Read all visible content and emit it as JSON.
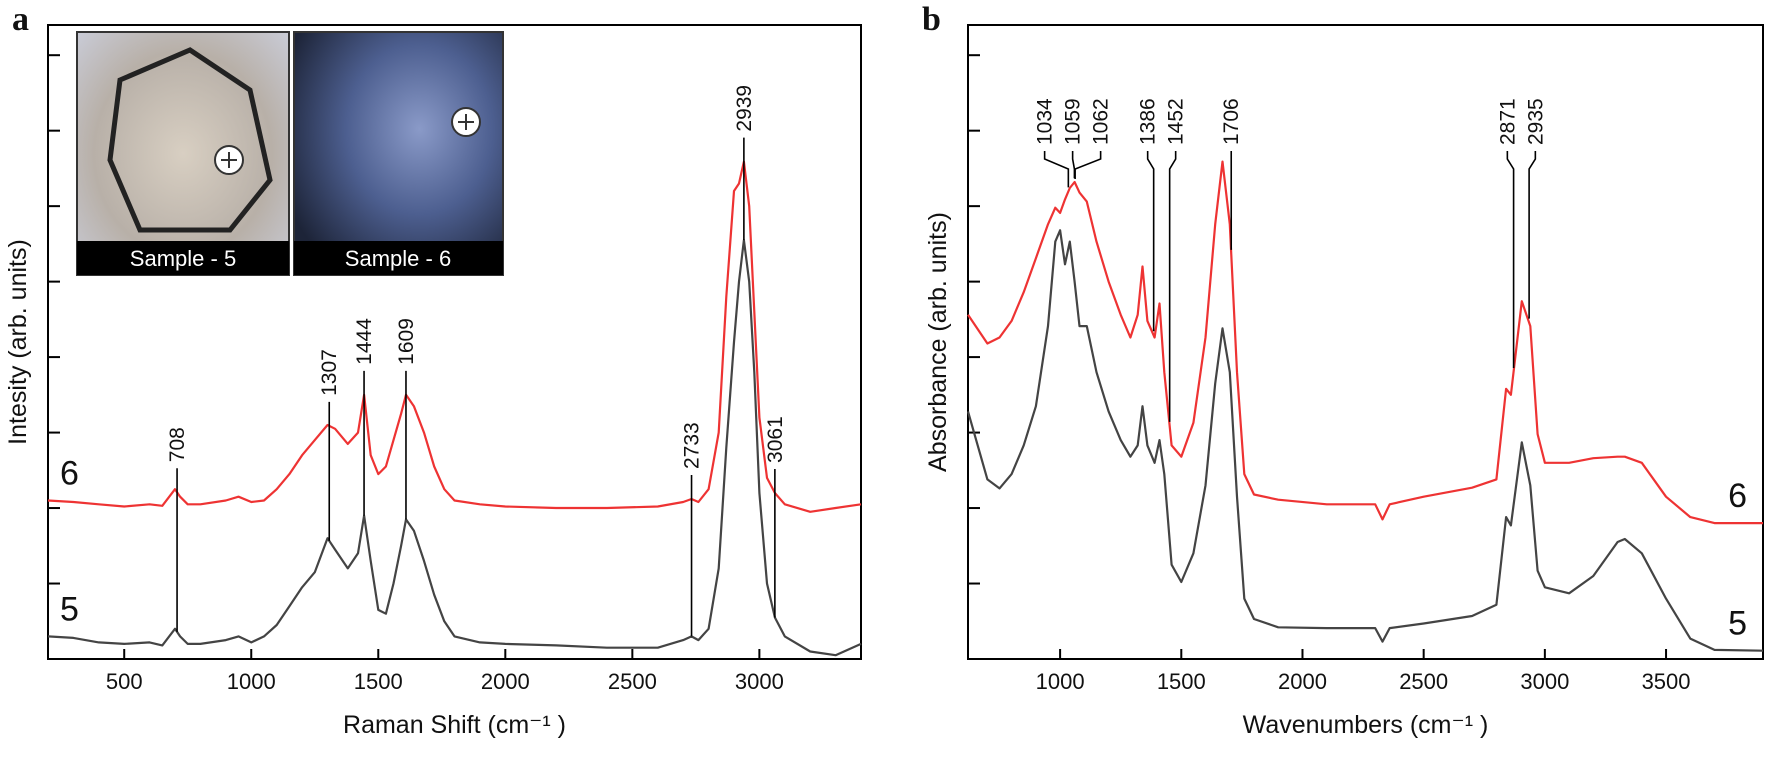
{
  "chart_data": [
    {
      "type": "line",
      "panel": "a",
      "xlabel": "Raman Shift (cm⁻¹ )",
      "ylabel": "Intesity (arb. units)",
      "insets": [
        "Sample - 5",
        "Sample - 6"
      ],
      "xlim": [
        200,
        3400
      ],
      "ylim": [
        0,
        8.4
      ],
      "xticks": [
        500,
        1000,
        1500,
        2000,
        2500,
        3000
      ],
      "yticks": [
        0,
        1,
        2,
        3,
        4,
        5,
        6,
        7,
        8
      ],
      "x": [
        200,
        300,
        400,
        500,
        600,
        650,
        700,
        720,
        750,
        800,
        900,
        950,
        1000,
        1050,
        1100,
        1150,
        1200,
        1250,
        1300,
        1330,
        1380,
        1420,
        1444,
        1470,
        1500,
        1530,
        1560,
        1590,
        1609,
        1640,
        1680,
        1720,
        1760,
        1800,
        1900,
        2000,
        2200,
        2400,
        2600,
        2700,
        2733,
        2760,
        2800,
        2840,
        2870,
        2900,
        2920,
        2939,
        2960,
        2980,
        3000,
        3030,
        3061,
        3100,
        3200,
        3300,
        3400
      ],
      "series": [
        {
          "name": "6",
          "color": "#ee3333",
          "values": [
            2.1,
            2.08,
            2.05,
            2.02,
            2.05,
            2.03,
            2.25,
            2.15,
            2.05,
            2.05,
            2.1,
            2.15,
            2.08,
            2.1,
            2.25,
            2.45,
            2.7,
            2.9,
            3.1,
            3.05,
            2.85,
            3.0,
            3.5,
            2.7,
            2.45,
            2.55,
            2.9,
            3.25,
            3.5,
            3.35,
            3.0,
            2.55,
            2.25,
            2.1,
            2.05,
            2.02,
            2.0,
            2.0,
            2.02,
            2.08,
            2.12,
            2.08,
            2.25,
            3.0,
            4.8,
            6.2,
            6.3,
            6.59,
            6.0,
            4.6,
            3.2,
            2.4,
            2.2,
            2.05,
            1.95,
            2.0,
            2.05
          ]
        },
        {
          "name": "5",
          "color": "#444444",
          "values": [
            0.3,
            0.28,
            0.22,
            0.2,
            0.22,
            0.18,
            0.4,
            0.3,
            0.2,
            0.2,
            0.25,
            0.3,
            0.22,
            0.3,
            0.45,
            0.7,
            0.95,
            1.15,
            1.6,
            1.45,
            1.2,
            1.4,
            1.9,
            1.3,
            0.65,
            0.6,
            1.0,
            1.5,
            1.85,
            1.7,
            1.3,
            0.85,
            0.5,
            0.3,
            0.22,
            0.2,
            0.18,
            0.15,
            0.15,
            0.25,
            0.3,
            0.25,
            0.4,
            1.2,
            2.8,
            4.2,
            5.0,
            5.55,
            5.0,
            3.8,
            2.2,
            1.0,
            0.55,
            0.3,
            0.1,
            0.05,
            0.2
          ]
        }
      ],
      "peaks": [
        708,
        1307,
        1444,
        1609,
        2733,
        2939,
        3061
      ]
    },
    {
      "type": "line",
      "panel": "b",
      "xlabel": "Wavenumbers (cm⁻¹ )",
      "ylabel": "Absorbance (arb. units)",
      "xlim": [
        620,
        3900
      ],
      "ylim": [
        0,
        8.4
      ],
      "xticks": [
        1000,
        1500,
        2000,
        2500,
        3000,
        3500
      ],
      "yticks": [
        0,
        1,
        2,
        3,
        4,
        5,
        6,
        7,
        8
      ],
      "x": [
        620,
        700,
        750,
        800,
        850,
        900,
        950,
        980,
        1000,
        1020,
        1040,
        1060,
        1080,
        1110,
        1150,
        1200,
        1250,
        1290,
        1320,
        1340,
        1360,
        1390,
        1410,
        1430,
        1460,
        1500,
        1550,
        1600,
        1640,
        1670,
        1700,
        1730,
        1760,
        1800,
        1900,
        2100,
        2300,
        2330,
        2360,
        2500,
        2700,
        2800,
        2840,
        2860,
        2905,
        2940,
        2970,
        3000,
        3100,
        3200,
        3300,
        3330,
        3400,
        3500,
        3600,
        3700,
        3900
      ],
      "series": [
        {
          "name": "6",
          "color": "#ee3333",
          "values": [
            4.56,
            4.18,
            4.26,
            4.48,
            4.86,
            5.31,
            5.76,
            5.98,
            5.91,
            6.09,
            6.24,
            6.32,
            6.18,
            6.06,
            5.53,
            5.0,
            4.56,
            4.26,
            4.56,
            5.2,
            4.48,
            4.26,
            4.71,
            3.8,
            2.83,
            2.68,
            3.13,
            4.26,
            5.76,
            6.59,
            5.76,
            3.8,
            2.45,
            2.18,
            2.11,
            2.05,
            2.05,
            1.85,
            2.05,
            2.15,
            2.27,
            2.38,
            3.58,
            3.5,
            4.74,
            4.41,
            2.98,
            2.6,
            2.6,
            2.66,
            2.68,
            2.68,
            2.6,
            2.15,
            1.88,
            1.8,
            1.8
          ]
        },
        {
          "name": "5",
          "color": "#444444",
          "values": [
            3.28,
            2.38,
            2.26,
            2.45,
            2.83,
            3.35,
            4.41,
            5.53,
            5.68,
            5.23,
            5.53,
            5.0,
            4.41,
            4.41,
            3.8,
            3.28,
            2.9,
            2.68,
            2.83,
            3.35,
            2.83,
            2.6,
            2.9,
            2.45,
            1.25,
            1.02,
            1.4,
            2.3,
            3.65,
            4.38,
            3.8,
            2.15,
            0.8,
            0.53,
            0.42,
            0.41,
            0.41,
            0.23,
            0.41,
            0.47,
            0.57,
            0.72,
            1.88,
            1.77,
            2.87,
            2.3,
            1.17,
            0.95,
            0.87,
            1.1,
            1.55,
            1.59,
            1.4,
            0.8,
            0.27,
            0.12,
            0.11
          ]
        }
      ],
      "peaks": [
        1034,
        1059,
        1062,
        1386,
        1452,
        1706,
        2871,
        2935
      ]
    }
  ]
}
